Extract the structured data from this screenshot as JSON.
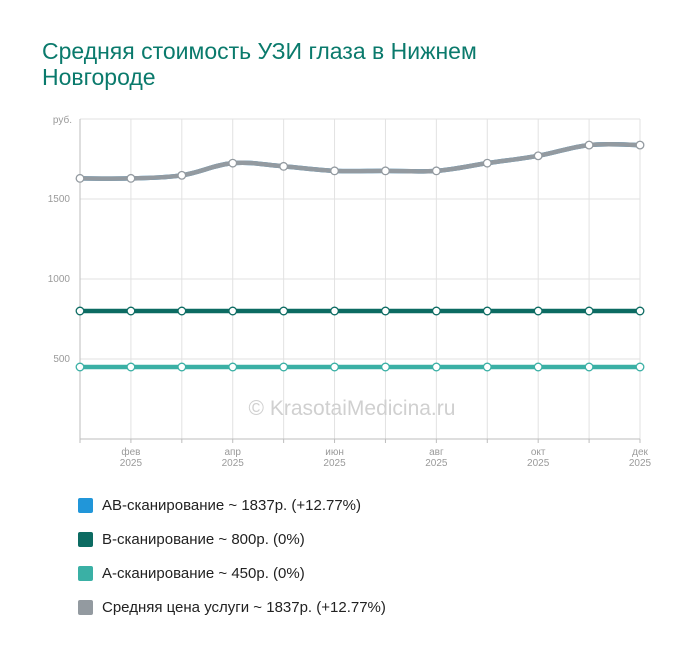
{
  "chart_data": {
    "type": "line",
    "title": "Средняя стоимость УЗИ глаза в Нижнем Новгороде",
    "y_unit": "руб.",
    "ylim": [
      0,
      2000
    ],
    "y_ticks": [
      500,
      1000,
      1500
    ],
    "x": [
      "2025-01",
      "2025-02",
      "2025-03",
      "2025-04",
      "2025-05",
      "2025-06",
      "2025-07",
      "2025-08",
      "2025-09",
      "2025-10",
      "2025-11",
      "2025-12"
    ],
    "x_tick_labels": [
      {
        "month": "фев",
        "year": "2025",
        "index": 1
      },
      {
        "month": "апр",
        "year": "2025",
        "index": 3
      },
      {
        "month": "июн",
        "year": "2025",
        "index": 5
      },
      {
        "month": "авг",
        "year": "2025",
        "index": 7
      },
      {
        "month": "окт",
        "year": "2025",
        "index": 9
      },
      {
        "month": "дек",
        "year": "2025",
        "index": 11
      }
    ],
    "grid": true,
    "watermark": "© KrasotaiMedicina.ru",
    "legend_position": "bottom",
    "series": [
      {
        "name": "AB-сканирование",
        "legend": "AB-сканирование ~ 1837р. (+12.77%)",
        "color": "#2196d9",
        "values": [
          1629,
          1629,
          1648,
          1724,
          1704,
          1676,
          1676,
          1676,
          1724,
          1770,
          1837,
          1837
        ]
      },
      {
        "name": "B-сканирование",
        "legend": "B-сканирование ~ 800р. (0%)",
        "color": "#0c6b62",
        "values": [
          800,
          800,
          800,
          800,
          800,
          800,
          800,
          800,
          800,
          800,
          800,
          800
        ]
      },
      {
        "name": "A-сканирование",
        "legend": "A-сканирование ~ 450р. (0%)",
        "color": "#3ab0a5",
        "values": [
          450,
          450,
          450,
          450,
          450,
          450,
          450,
          450,
          450,
          450,
          450,
          450
        ]
      },
      {
        "name": "Средняя цена услуги",
        "legend": "Средняя цена услуги ~ 1837р. (+12.77%)",
        "color": "#939aa0",
        "values": [
          1629,
          1629,
          1648,
          1724,
          1704,
          1676,
          1676,
          1676,
          1724,
          1770,
          1837,
          1837
        ]
      }
    ]
  }
}
